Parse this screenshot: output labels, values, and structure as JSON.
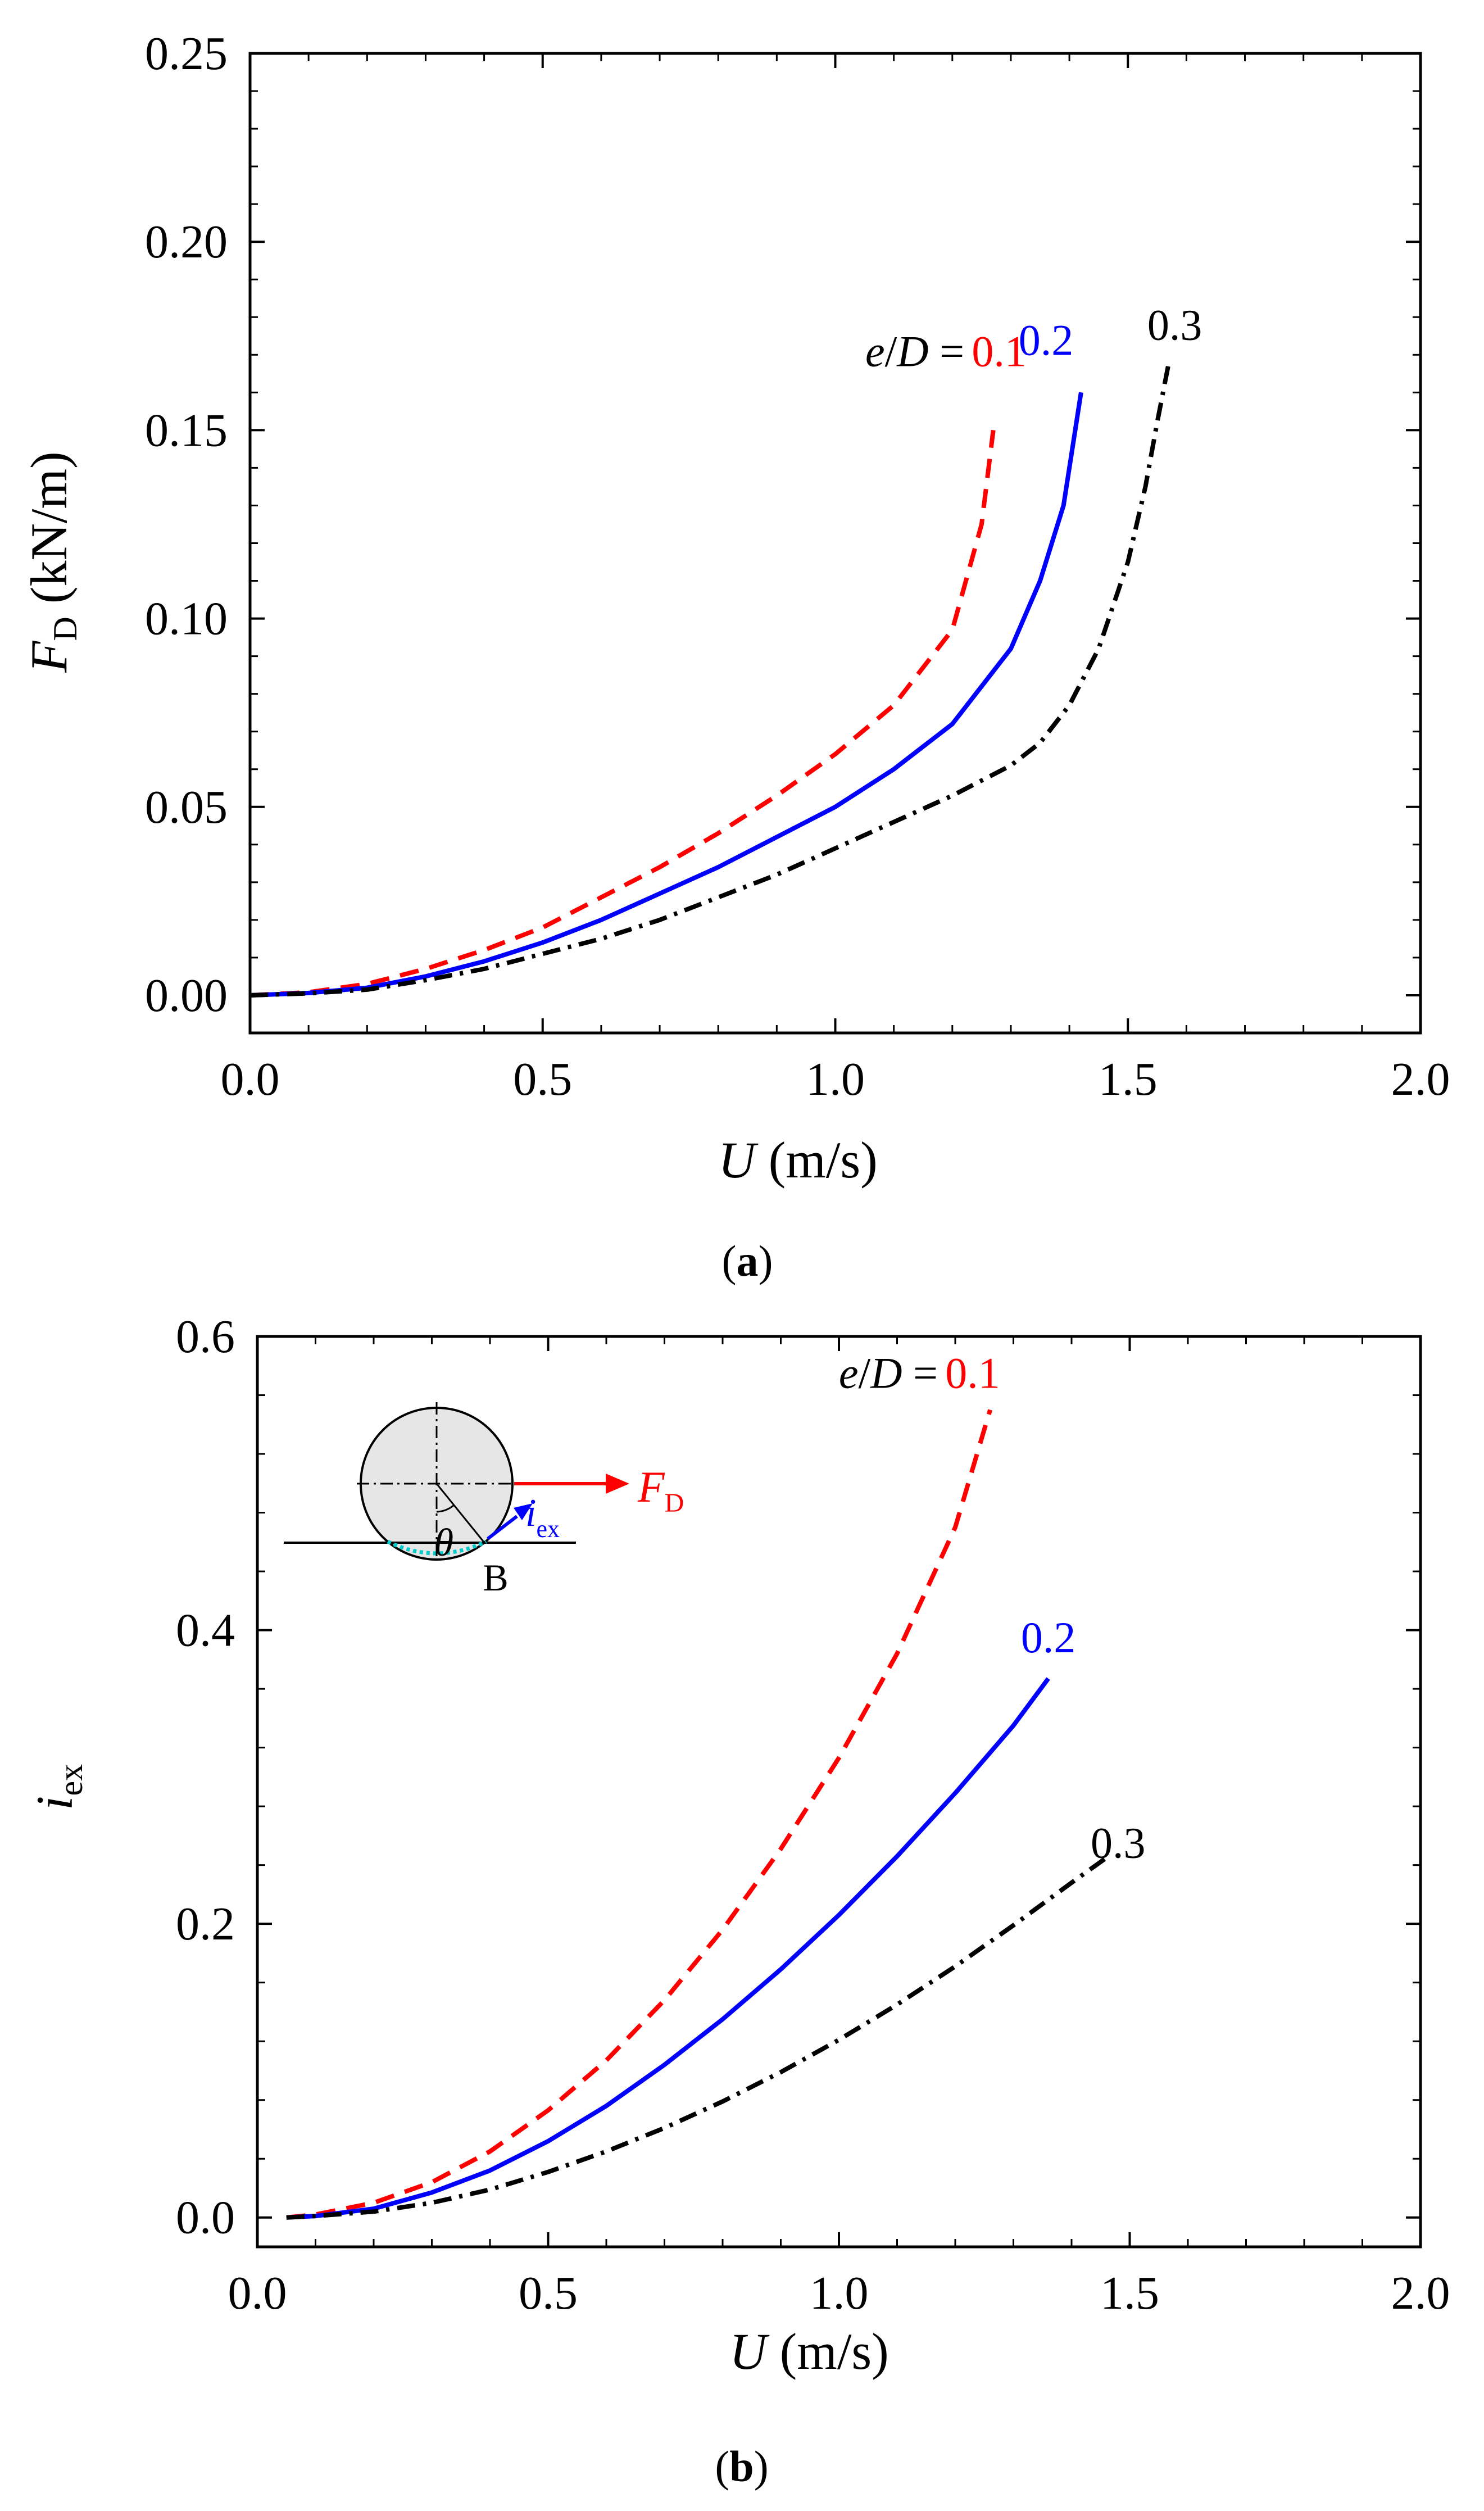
{
  "chart_data": [
    {
      "panel": "a",
      "type": "line",
      "caption": "a",
      "xlabel": "U",
      "xlabel_units": " (m/s)",
      "ylabel_main": "F",
      "ylabel_sub": "D",
      "ylabel_units": " (kN/m)",
      "xlim": [
        0,
        2.0
      ],
      "ylim": [
        -0.01,
        0.25
      ],
      "xticks": [
        0.0,
        0.5,
        1.0,
        1.5,
        2.0
      ],
      "xtick_labels": [
        "0.0",
        "0.5",
        "1.0",
        "1.5",
        "2.0"
      ],
      "yticks": [
        0.0,
        0.05,
        0.1,
        0.15,
        0.2,
        0.25
      ],
      "ytick_labels": [
        "0.00",
        "0.05",
        "0.10",
        "0.15",
        "0.20",
        "0.25"
      ],
      "legend_prefix": "e/D = ",
      "series": [
        {
          "name": "0.1",
          "color": "#ff0000",
          "style": "dashed",
          "label_at": [
            1.28,
            0.167
          ],
          "points": [
            [
              0.0,
              0.0
            ],
            [
              0.1,
              0.0008
            ],
            [
              0.2,
              0.003
            ],
            [
              0.3,
              0.007
            ],
            [
              0.4,
              0.012
            ],
            [
              0.5,
              0.018
            ],
            [
              0.6,
              0.026
            ],
            [
              0.7,
              0.034
            ],
            [
              0.8,
              0.043
            ],
            [
              0.9,
              0.053
            ],
            [
              1.0,
              0.064
            ],
            [
              1.1,
              0.077
            ],
            [
              1.2,
              0.097
            ],
            [
              1.25,
              0.125
            ],
            [
              1.27,
              0.15
            ]
          ]
        },
        {
          "name": "0.2",
          "color": "#0000ff",
          "style": "solid",
          "label_at": [
            1.36,
            0.17
          ],
          "points": [
            [
              0.0,
              0.0
            ],
            [
              0.1,
              0.0006
            ],
            [
              0.2,
              0.002
            ],
            [
              0.3,
              0.005
            ],
            [
              0.4,
              0.009
            ],
            [
              0.5,
              0.014
            ],
            [
              0.6,
              0.02
            ],
            [
              0.7,
              0.027
            ],
            [
              0.8,
              0.034
            ],
            [
              0.9,
              0.042
            ],
            [
              1.0,
              0.05
            ],
            [
              1.1,
              0.06
            ],
            [
              1.2,
              0.072
            ],
            [
              1.3,
              0.092
            ],
            [
              1.35,
              0.11
            ],
            [
              1.39,
              0.13
            ],
            [
              1.42,
              0.16
            ]
          ]
        },
        {
          "name": "0.3",
          "color": "#000000",
          "style": "dashdot",
          "label_at": [
            1.58,
            0.174
          ],
          "points": [
            [
              0.0,
              0.0
            ],
            [
              0.1,
              0.0005
            ],
            [
              0.2,
              0.0015
            ],
            [
              0.3,
              0.004
            ],
            [
              0.4,
              0.007
            ],
            [
              0.5,
              0.011
            ],
            [
              0.6,
              0.015
            ],
            [
              0.7,
              0.02
            ],
            [
              0.8,
              0.026
            ],
            [
              0.9,
              0.032
            ],
            [
              1.0,
              0.039
            ],
            [
              1.1,
              0.046
            ],
            [
              1.2,
              0.053
            ],
            [
              1.3,
              0.061
            ],
            [
              1.35,
              0.067
            ],
            [
              1.4,
              0.077
            ],
            [
              1.45,
              0.092
            ],
            [
              1.5,
              0.115
            ],
            [
              1.53,
              0.135
            ],
            [
              1.55,
              0.152
            ],
            [
              1.57,
              0.168
            ]
          ]
        }
      ]
    },
    {
      "panel": "b",
      "type": "line",
      "caption": "b",
      "xlabel": "U",
      "xlabel_units": " (m/s)",
      "ylabel_main": "i",
      "ylabel_sub": "ex",
      "xlim": [
        0,
        2.0
      ],
      "ylim": [
        -0.02,
        0.6
      ],
      "xticks": [
        0.0,
        0.5,
        1.0,
        1.5,
        2.0
      ],
      "xtick_labels": [
        "0.0",
        "0.5",
        "1.0",
        "1.5",
        "2.0"
      ],
      "yticks": [
        0.0,
        0.2,
        0.4,
        0.6
      ],
      "ytick_labels": [
        "0.0",
        "0.2",
        "0.4",
        "0.6"
      ],
      "legend_prefix": "e/D = ",
      "series": [
        {
          "name": "0.1",
          "color": "#ff0000",
          "style": "dashed",
          "label_at": [
            1.23,
            0.565
          ],
          "points": [
            [
              0.05,
              0.0
            ],
            [
              0.1,
              0.002
            ],
            [
              0.2,
              0.01
            ],
            [
              0.3,
              0.024
            ],
            [
              0.4,
              0.045
            ],
            [
              0.5,
              0.073
            ],
            [
              0.6,
              0.107
            ],
            [
              0.7,
              0.148
            ],
            [
              0.8,
              0.196
            ],
            [
              0.9,
              0.251
            ],
            [
              1.0,
              0.313
            ],
            [
              1.1,
              0.384
            ],
            [
              1.2,
              0.47
            ],
            [
              1.26,
              0.55
            ]
          ]
        },
        {
          "name": "0.2",
          "color": "#0000ff",
          "style": "solid",
          "label_at": [
            1.36,
            0.385
          ],
          "points": [
            [
              0.05,
              0.0
            ],
            [
              0.1,
              0.001
            ],
            [
              0.2,
              0.006
            ],
            [
              0.3,
              0.017
            ],
            [
              0.4,
              0.032
            ],
            [
              0.5,
              0.052
            ],
            [
              0.6,
              0.076
            ],
            [
              0.7,
              0.104
            ],
            [
              0.8,
              0.135
            ],
            [
              0.9,
              0.169
            ],
            [
              1.0,
              0.206
            ],
            [
              1.1,
              0.246
            ],
            [
              1.2,
              0.289
            ],
            [
              1.3,
              0.335
            ],
            [
              1.36,
              0.367
            ]
          ]
        },
        {
          "name": "0.3",
          "color": "#000000",
          "style": "dashdot",
          "label_at": [
            1.48,
            0.245
          ],
          "points": [
            [
              0.05,
              0.0
            ],
            [
              0.1,
              0.001
            ],
            [
              0.2,
              0.004
            ],
            [
              0.3,
              0.01
            ],
            [
              0.4,
              0.019
            ],
            [
              0.5,
              0.031
            ],
            [
              0.6,
              0.045
            ],
            [
              0.7,
              0.061
            ],
            [
              0.8,
              0.079
            ],
            [
              0.9,
              0.099
            ],
            [
              1.0,
              0.121
            ],
            [
              1.1,
              0.145
            ],
            [
              1.2,
              0.171
            ],
            [
              1.3,
              0.199
            ],
            [
              1.4,
              0.228
            ],
            [
              1.46,
              0.245
            ]
          ]
        }
      ],
      "inset": {
        "force_label_main": "F",
        "force_label_sub": "D",
        "seepage_label_main": "i",
        "seepage_label_sub": "ex",
        "angle_label": "θ",
        "point_label": "B",
        "force_color": "#ff0000",
        "seepage_color": "#0000ff",
        "zone_color": "#00cccc"
      }
    }
  ]
}
